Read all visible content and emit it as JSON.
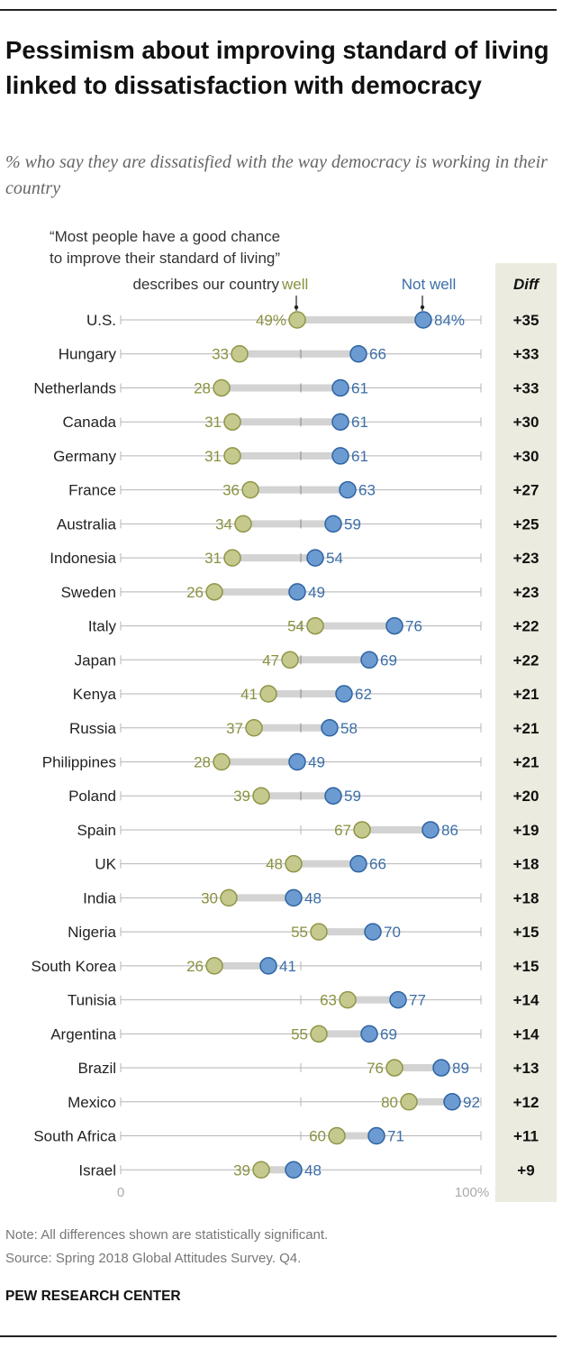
{
  "header": {
    "title": "Pessimism about improving standard of living linked to dissatisfaction with democracy",
    "subtitle": "% who say they are dissatisfied with the way democracy is working in their country"
  },
  "legend": {
    "question_line1": "“Most people have a good chance",
    "question_line2": "to improve their standard of living”",
    "question_line3": "describes our country",
    "well_label": "well",
    "not_well_label": "Not well",
    "diff_header": "Diff"
  },
  "colors": {
    "well": "#c6c98e",
    "well_stroke": "#8f9546",
    "well_text": "#8b9140",
    "not_well": "#6c9bd2",
    "not_well_stroke": "#2e63a1",
    "not_well_text": "#3c6ea8",
    "diff_bg": "#ebebdf",
    "connector": "#d3d3d3"
  },
  "chart_data": {
    "type": "dot",
    "series": [
      {
        "name": "well",
        "values": [
          49,
          33,
          28,
          31,
          31,
          36,
          34,
          31,
          26,
          54,
          47,
          41,
          37,
          28,
          39,
          67,
          48,
          30,
          55,
          26,
          63,
          55,
          76,
          80,
          60,
          39
        ]
      },
      {
        "name": "Not well",
        "values": [
          84,
          66,
          61,
          61,
          61,
          63,
          59,
          54,
          49,
          76,
          69,
          62,
          58,
          49,
          59,
          86,
          66,
          48,
          70,
          41,
          77,
          69,
          89,
          92,
          71,
          48
        ]
      }
    ],
    "categories": [
      "U.S.",
      "Hungary",
      "Netherlands",
      "Canada",
      "Germany",
      "France",
      "Australia",
      "Indonesia",
      "Sweden",
      "Italy",
      "Japan",
      "Kenya",
      "Russia",
      "Philippines",
      "Poland",
      "Spain",
      "UK",
      "India",
      "Nigeria",
      "South Korea",
      "Tunisia",
      "Argentina",
      "Brazil",
      "Mexico",
      "South Africa",
      "Israel"
    ],
    "diff": [
      "+35",
      "+33",
      "+33",
      "+30",
      "+30",
      "+27",
      "+25",
      "+23",
      "+23",
      "+22",
      "+22",
      "+21",
      "+21",
      "+21",
      "+20",
      "+19",
      "+18",
      "+18",
      "+15",
      "+15",
      "+14",
      "+14",
      "+13",
      "+12",
      "+11",
      "+9"
    ],
    "first_row_suffix": "%",
    "x_min_label": "0",
    "x_max_label": "100%",
    "xlim": [
      0,
      100
    ]
  },
  "footer": {
    "note": "Note: All differences shown are statistically significant.",
    "source": "Source: Spring 2018 Global Attitudes Survey. Q4.",
    "brand": "PEW RESEARCH CENTER"
  }
}
